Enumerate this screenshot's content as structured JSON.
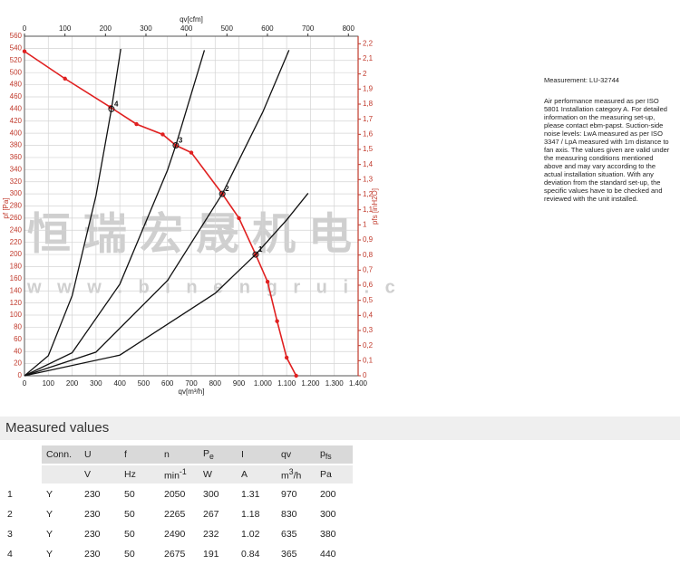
{
  "chart_data": {
    "type": "line",
    "x_label": "qv[m³/h]",
    "x2_label": "qv[cfm]",
    "y_label": "pf [Pa]",
    "y2_label": "pfs [inH2O]",
    "xlim": [
      0,
      1400
    ],
    "xticks": [
      0,
      100,
      200,
      300,
      400,
      500,
      600,
      700,
      800,
      900,
      {
        "value": 1000,
        "label": "1.000"
      },
      {
        "value": 1100,
        "label": "1.100"
      },
      {
        "value": 1200,
        "label": "1.200"
      },
      {
        "value": 1300,
        "label": "1.300"
      },
      {
        "value": 1400,
        "label": "1.400"
      }
    ],
    "x2lim": [
      0,
      824
    ],
    "x2ticks": [
      0,
      100,
      200,
      300,
      400,
      500,
      600,
      700,
      800
    ],
    "ylim": [
      0,
      560
    ],
    "yticks": [
      0,
      20,
      40,
      60,
      80,
      100,
      120,
      140,
      160,
      180,
      200,
      220,
      240,
      260,
      280,
      300,
      320,
      340,
      360,
      380,
      400,
      420,
      440,
      460,
      480,
      500,
      520,
      540,
      560
    ],
    "y2lim": [
      0,
      2.25
    ],
    "y2ticks": [
      0,
      {
        "value": 0.1,
        "label": "0,1"
      },
      {
        "value": 0.2,
        "label": "0,2"
      },
      {
        "value": 0.3,
        "label": "0,3"
      },
      {
        "value": 0.4,
        "label": "0,4"
      },
      {
        "value": 0.5,
        "label": "0,5"
      },
      {
        "value": 0.6,
        "label": "0,6"
      },
      {
        "value": 0.7,
        "label": "0,7"
      },
      {
        "value": 0.8,
        "label": "0,8"
      },
      {
        "value": 0.9,
        "label": "0,9"
      },
      1,
      {
        "value": 1.1,
        "label": "1,1"
      },
      {
        "value": 1.2,
        "label": "1,2"
      },
      {
        "value": 1.3,
        "label": "1,3"
      },
      {
        "value": 1.4,
        "label": "1,4"
      },
      {
        "value": 1.5,
        "label": "1,5"
      },
      {
        "value": 1.6,
        "label": "1,6"
      },
      {
        "value": 1.7,
        "label": "1,7"
      },
      {
        "value": 1.8,
        "label": "1,8"
      },
      {
        "value": 1.9,
        "label": "1,9"
      },
      2,
      {
        "value": 2.1,
        "label": "2,1"
      },
      {
        "value": 2.2,
        "label": "2,2"
      }
    ],
    "grid": true,
    "series": [
      {
        "color": "#e02020",
        "markers": true,
        "x": [
          0,
          170,
          360,
          470,
          580,
          635,
          700,
          830,
          900,
          970,
          1020,
          1060,
          1100,
          1140
        ],
        "values": [
          535,
          490,
          443,
          415,
          398,
          380,
          368,
          300,
          260,
          200,
          155,
          90,
          30,
          0
        ]
      },
      {
        "color": "#111111",
        "markers": false,
        "x": [
          0,
          100,
          200,
          300,
          365,
          404
        ],
        "values": [
          0,
          33,
          132,
          297,
          440,
          539
        ]
      },
      {
        "color": "#111111",
        "markers": false,
        "x": [
          0,
          200,
          400,
          600,
          635,
          755
        ],
        "values": [
          0,
          38,
          151,
          339,
          380,
          537
        ]
      },
      {
        "color": "#111111",
        "markers": false,
        "x": [
          0,
          300,
          600,
          830,
          1000,
          1110
        ],
        "values": [
          0,
          39,
          157,
          300,
          435,
          537
        ]
      },
      {
        "color": "#111111",
        "markers": false,
        "x": [
          0,
          400,
          800,
          970,
          1100,
          1190
        ],
        "values": [
          0,
          34,
          136,
          200,
          257,
          301
        ]
      }
    ],
    "points": [
      {
        "label": "1",
        "x": 970,
        "y": 200
      },
      {
        "label": "2",
        "x": 830,
        "y": 300
      },
      {
        "label": "3",
        "x": 635,
        "y": 380
      },
      {
        "label": "4",
        "x": 365,
        "y": 440
      }
    ],
    "watermark": [
      "恒瑞宏晟机电",
      "w w w . b i n e n g r u i . c"
    ]
  },
  "note": {
    "measurement": "Measurement: LU-32744",
    "text": "Air performance measured as per ISO 5801 Installation category A. For detailed information on the measuring set-up, please contact ebm-papst. Suction-side noise levels: LwA measured as per ISO 3347 / LpA measured with 1m distance to fan axis. The values given are valid under the measuring conditions mentioned above and may vary according to the actual installation situation. With any deviation from the standard set-up, the specific values have to be checked and reviewed with the unit installed."
  },
  "table": {
    "title": "Measured values",
    "header": [
      "Conn.",
      "U",
      "f",
      "n",
      {
        "text": "P",
        "sub": "e"
      },
      "I",
      "qv",
      {
        "text": "p",
        "sub": "fs"
      }
    ],
    "units": [
      "V",
      "Hz",
      {
        "text": "min",
        "sup": "-1"
      },
      "W",
      "A",
      {
        "text": "m",
        "sup": "3",
        "rest": "/h"
      },
      "Pa"
    ],
    "rows": [
      [
        "1",
        "Y",
        "230",
        "50",
        "2050",
        "300",
        "1.31",
        "970",
        "200"
      ],
      [
        "2",
        "Y",
        "230",
        "50",
        "2265",
        "267",
        "1.18",
        "830",
        "300"
      ],
      [
        "3",
        "Y",
        "230",
        "50",
        "2490",
        "232",
        "1.02",
        "635",
        "380"
      ],
      [
        "4",
        "Y",
        "230",
        "50",
        "2675",
        "191",
        "0.84",
        "365",
        "440"
      ]
    ]
  }
}
